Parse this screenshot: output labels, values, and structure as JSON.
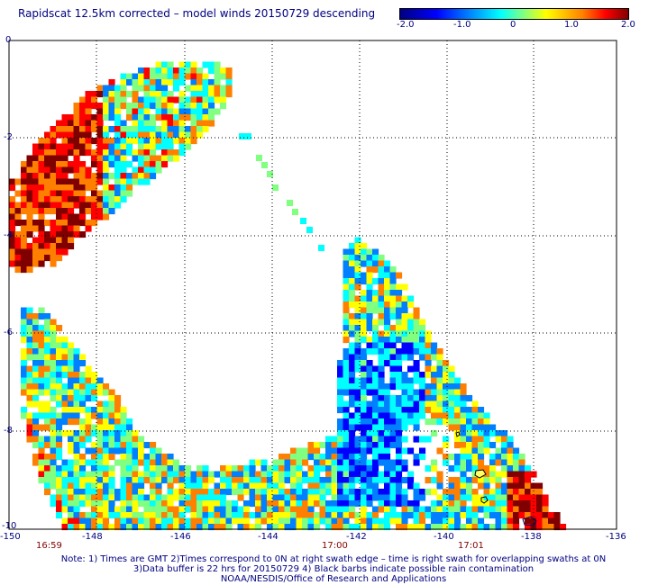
{
  "title": "Rapidscat 12.5km corrected – model winds 20150729 descending",
  "colorbar": {
    "labels": [
      "-2.0",
      "-1.0",
      "0",
      "1.0",
      "2.0"
    ],
    "colors": [
      "#000080",
      "#0000ff",
      "#0080ff",
      "#00ffff",
      "#80ff80",
      "#ffff00",
      "#ff8000",
      "#ff0000",
      "#800000"
    ]
  },
  "map": {
    "lat_labels": [
      "0",
      "-2",
      "-4",
      "-6",
      "-8",
      "-10"
    ],
    "lon_labels": [
      "-150",
      "-148",
      "-146",
      "-144",
      "-142",
      "-140",
      "-138",
      "-136"
    ],
    "lat_range": [
      -10,
      0
    ],
    "lon_range": [
      -150,
      -136
    ],
    "grid": true
  },
  "time_labels": [
    "16:59",
    "17:00",
    "17:01"
  ],
  "notes": [
    "Note: 1) Times are GMT 2)Times correspond to 0N at right swath edge – time is right swath for overlapping swaths at 0N",
    "3)Data buffer is 22 hrs for 20150729 4) Black barbs indicate possible rain contamination",
    "NOAA/NESDIS/Office of Research and Applications"
  ]
}
